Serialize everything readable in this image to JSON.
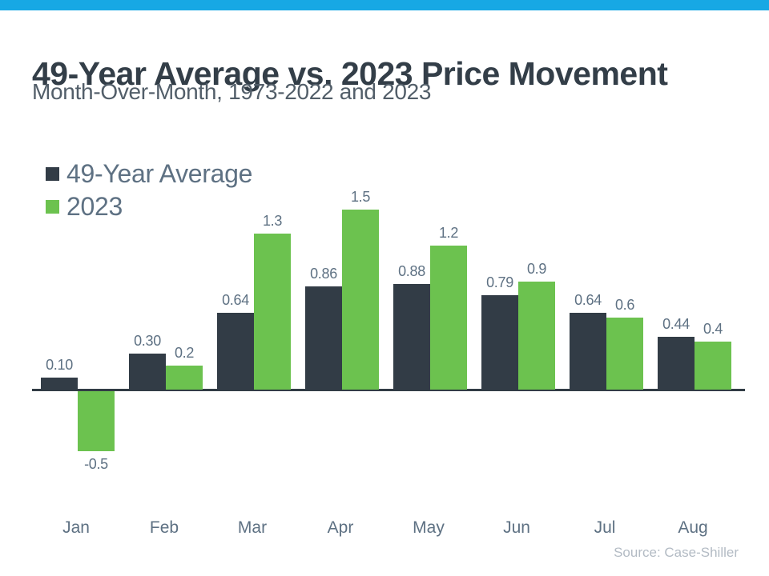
{
  "page": {
    "title": "49-Year Average vs. 2023 Price Movement",
    "subtitle": "Month-Over-Month, 1973-2022 and 2023",
    "source": "Source: Case-Shiller"
  },
  "colors": {
    "topbar": "#17A8E4",
    "dark_series": "#323C46",
    "green_series": "#6CC24F",
    "title_text": "#333E48",
    "subtitle_text": "#525E69",
    "label_text": "#5E7183",
    "source_text": "#B3BBC4"
  },
  "legend": {
    "items": [
      {
        "label": "49-Year Average",
        "color": "#323C46"
      },
      {
        "label": "2023",
        "color": "#6CC24F"
      }
    ]
  },
  "chart_data": {
    "type": "bar",
    "title": "49-Year Average vs. 2023 Price Movement",
    "subtitle": "Month-Over-Month, 1973-2022 and 2023",
    "xlabel": "",
    "ylabel": "",
    "ylim": [
      -0.6,
      1.6
    ],
    "grid": false,
    "legend_position": "top-left",
    "categories": [
      "Jan",
      "Feb",
      "Mar",
      "Apr",
      "May",
      "Jun",
      "Jul",
      "Aug"
    ],
    "series": [
      {
        "name": "49-Year Average",
        "values": [
          0.1,
          0.3,
          0.64,
          0.86,
          0.88,
          0.79,
          0.64,
          0.44
        ],
        "labels": [
          "0.10",
          "0.30",
          "0.64",
          "0.86",
          "0.88",
          "0.79",
          "0.64",
          "0.44"
        ]
      },
      {
        "name": "2023",
        "values": [
          -0.5,
          0.2,
          1.3,
          1.5,
          1.2,
          0.9,
          0.6,
          0.4
        ],
        "labels": [
          "-0.5",
          "0.2",
          "1.3",
          "1.5",
          "1.2",
          "0.9",
          "0.6",
          "0.4"
        ]
      }
    ]
  }
}
